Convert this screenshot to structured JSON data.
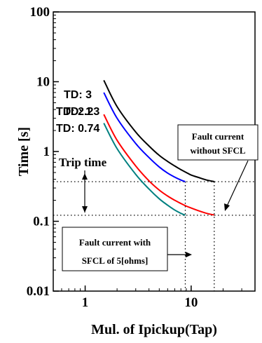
{
  "chart_data": {
    "type": "line",
    "title": "",
    "xlabel": "Mul. of Ipickup(Tap)",
    "ylabel": "Time [s]",
    "x_scale": "log",
    "y_scale": "log",
    "xlim": [
      0.5,
      40
    ],
    "ylim": [
      0.01,
      100
    ],
    "x_ticks": [
      {
        "value": 1,
        "label": "1"
      },
      {
        "value": 10,
        "label": "10"
      }
    ],
    "y_ticks": [
      {
        "value": 100,
        "label": "100"
      },
      {
        "value": 10,
        "label": "10"
      },
      {
        "value": 1,
        "label": "1"
      },
      {
        "value": 0.1,
        "label": "0.1"
      },
      {
        "value": 0.01,
        "label": "0.01"
      }
    ],
    "grid": false,
    "series": [
      {
        "name": "TD: 3",
        "color": "#000000",
        "x": [
          1.5,
          2,
          3,
          4,
          5,
          6,
          7,
          8,
          9,
          10,
          12,
          14,
          16.5
        ],
        "y": [
          10.5,
          4.4,
          1.9,
          1.2,
          0.88,
          0.72,
          0.62,
          0.55,
          0.5,
          0.46,
          0.42,
          0.39,
          0.37
        ]
      },
      {
        "name": "TD: 2.23",
        "color": "#0000ff",
        "x": [
          1.5,
          2,
          3,
          4,
          5,
          6,
          7,
          8,
          8.8
        ],
        "y": [
          7.0,
          3.0,
          1.3,
          0.82,
          0.6,
          0.49,
          0.43,
          0.39,
          0.37
        ]
      },
      {
        "name": "TD: 1",
        "color": "#ff0000",
        "x": [
          1.5,
          2,
          3,
          4,
          5,
          6,
          7,
          8,
          9,
          10,
          12,
          14,
          16.5
        ],
        "y": [
          3.4,
          1.45,
          0.62,
          0.38,
          0.28,
          0.23,
          0.2,
          0.18,
          0.165,
          0.155,
          0.14,
          0.13,
          0.123
        ]
      },
      {
        "name": "TD: 0.74",
        "color": "#008080",
        "x": [
          1.5,
          2,
          3,
          4,
          5,
          6,
          7,
          8,
          8.8
        ],
        "y": [
          2.55,
          1.1,
          0.47,
          0.29,
          0.21,
          0.17,
          0.145,
          0.13,
          0.122
        ]
      }
    ],
    "reference_lines": {
      "horizontal_y": [
        0.37,
        0.122
      ],
      "vertical_x": [
        8.8,
        16.5
      ]
    },
    "annotations": {
      "td_labels": [
        "TD: 3",
        "TD: 2.23",
        "TD: 1",
        "TD: 0.74"
      ],
      "trip_time": "Trip time",
      "box_without_line1": "Fault current",
      "box_without_line2": "without SFCL",
      "box_with_line1": "Fault current with",
      "box_with_line2": "SFCL of 5[ohms]"
    }
  }
}
